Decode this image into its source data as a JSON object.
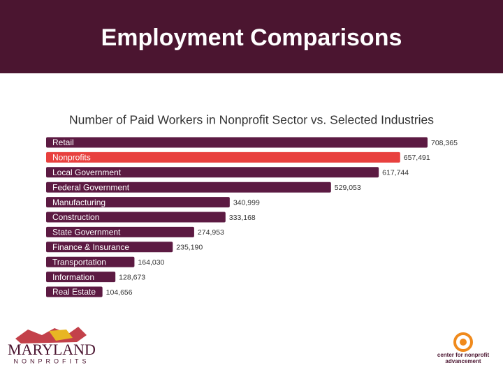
{
  "slide_title": "Employment Comparisons",
  "chart_data": {
    "type": "bar",
    "orientation": "horizontal",
    "title": "Number of Paid Workers in Nonprofit Sector vs. Selected Industries",
    "categories": [
      "Retail",
      "Nonprofits",
      "Local Government",
      "Federal Government",
      "Manufacturing",
      "Construction",
      "State Government",
      "Finance & Insurance",
      "Transportation",
      "Information",
      "Real Estate"
    ],
    "values": [
      708365,
      657491,
      617744,
      529053,
      340999,
      333168,
      274953,
      235190,
      164030,
      128673,
      104656
    ],
    "value_labels": [
      "708,365",
      "657,491",
      "617,744",
      "529,053",
      "340,999",
      "333,168",
      "274,953",
      "235,190",
      "164,030",
      "128,673",
      "104,656"
    ],
    "colors": [
      "#5c1a42",
      "#e8403e",
      "#5c1a42",
      "#5c1a42",
      "#5c1a42",
      "#5c1a42",
      "#5c1a42",
      "#5c1a42",
      "#5c1a42",
      "#5c1a42",
      "#5c1a42"
    ]
  },
  "logos": {
    "left": {
      "name": "MARYLAND",
      "sub": "NONPROFITS"
    },
    "right": {
      "name": "center for nonprofit advancement"
    }
  }
}
